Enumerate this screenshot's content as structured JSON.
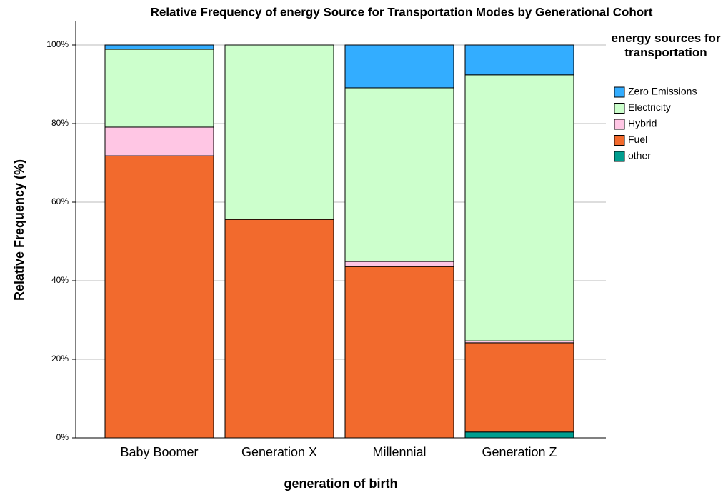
{
  "chart_data": {
    "type": "stacked_bar",
    "title": "Relative Frequency of energy Source for Transportation Modes by Generational Cohort",
    "x_label": "generation of birth",
    "y_label": "Relative Frequency (%)",
    "legend_title": "energy sources for transportation",
    "categories": [
      "Baby Boomer",
      "Generation X",
      "Millennial",
      "Generation Z"
    ],
    "series": [
      {
        "name": "other",
        "color": "#009e8f",
        "values": [
          0,
          0,
          0,
          1.5
        ]
      },
      {
        "name": "Fuel",
        "color": "#f26a2d",
        "values": [
          71.8,
          55.6,
          43.6,
          22.7
        ]
      },
      {
        "name": "Hybrid",
        "color": "#ffc6e4",
        "values": [
          7.3,
          0,
          1.3,
          0.5
        ]
      },
      {
        "name": "Electricity",
        "color": "#ccffcc",
        "values": [
          19.8,
          44.4,
          44.2,
          67.7
        ]
      },
      {
        "name": "Zero Emissions",
        "color": "#33adff",
        "values": [
          1.1,
          0,
          10.9,
          7.6
        ]
      }
    ],
    "ylim": [
      0,
      106
    ],
    "yticks": [
      {
        "value": 0,
        "label": "0%"
      },
      {
        "value": 20,
        "label": "20%"
      },
      {
        "value": 40,
        "label": "40%"
      },
      {
        "value": 60,
        "label": "60%"
      },
      {
        "value": 80,
        "label": "80%"
      },
      {
        "value": 100,
        "label": "100%"
      }
    ],
    "grid": true
  }
}
